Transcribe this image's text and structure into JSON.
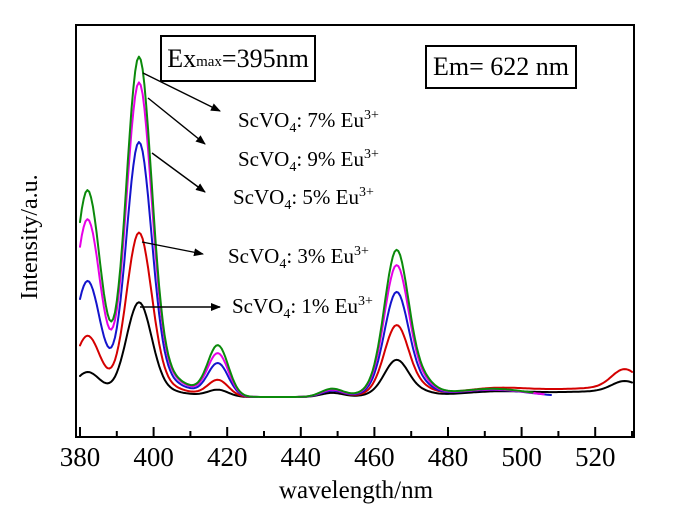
{
  "figure": {
    "background": "#ffffff",
    "description_visible_text_only": true
  },
  "annotations": {
    "ex_prefix": "Ex",
    "ex_sub": "max",
    "ex_suffix": "=395nm",
    "em_text": "Em= 622 nm"
  },
  "curve_labels": [
    {
      "compound": "ScVO",
      "compound_sub": "4",
      "mid": ": 7% Eu",
      "sup": "3+",
      "series_id": "7pct"
    },
    {
      "compound": "ScVO",
      "compound_sub": "4",
      "mid": ": 9% Eu",
      "sup": "3+",
      "series_id": "9pct"
    },
    {
      "compound": "ScVO",
      "compound_sub": "4",
      "mid": ": 5% Eu",
      "sup": "3+",
      "series_id": "5pct"
    },
    {
      "compound": "ScVO",
      "compound_sub": "4",
      "mid": ": 3% Eu",
      "sup": "3+",
      "series_id": "3pct"
    },
    {
      "compound": "ScVO",
      "compound_sub": "4",
      "mid": ": 1% Eu",
      "sup": "3+",
      "series_id": "1pct"
    }
  ],
  "chart_data": {
    "type": "line",
    "title": "",
    "xlabel": "wavelength/nm",
    "ylabel": "Intensity/a.u.",
    "xlim": [
      380,
      530
    ],
    "x_ticks": [
      380,
      400,
      420,
      440,
      460,
      480,
      500,
      520
    ],
    "x_minor_tick_interval": 10,
    "grid": false,
    "y_unit": "a.u.",
    "excitation_max_nm": 395,
    "emission_nm": 622,
    "peak_wavelengths_nm": [
      383,
      395,
      417,
      448,
      466,
      474,
      490,
      528
    ],
    "peak_centers_nm": [
      382,
      396,
      399,
      417.5,
      448.5,
      466,
      467,
      473.5,
      492,
      528,
      528
    ],
    "peak_sigmas_nm": [
      3.5,
      3.4,
      8.0,
      2.8,
      3.0,
      3.2,
      6.0,
      2.5,
      10.0,
      20.0,
      3.5
    ],
    "series": [
      {
        "id": "1pct",
        "name": "ScVO4: 1% Eu3+",
        "color": "#000000",
        "end_nm": 530,
        "amplitudes": [
          0.071,
          0.257,
          0.023,
          0.02,
          0.012,
          0.091,
          0.018,
          0.004,
          0.013,
          0.018,
          0.029
        ]
      },
      {
        "id": "3pct",
        "name": "ScVO4: 3% Eu3+",
        "color": "#d40000",
        "end_nm": 530,
        "amplitudes": [
          0.176,
          0.447,
          0.039,
          0.048,
          0.018,
          0.179,
          0.032,
          0.007,
          0.021,
          0.029,
          0.053
        ]
      },
      {
        "id": "5pct",
        "name": "ScVO4: 5% Eu3+",
        "color": "#1414cc",
        "end_nm": 508,
        "amplitudes": [
          0.335,
          0.694,
          0.06,
          0.096,
          0.018,
          0.262,
          0.047,
          0.009,
          0.021,
          0,
          0
        ]
      },
      {
        "id": "9pct",
        "name": "ScVO4: 9% Eu3+",
        "color": "#e600e6",
        "end_nm": 506,
        "amplitudes": [
          0.515,
          0.856,
          0.074,
          0.124,
          0.021,
          0.329,
          0.059,
          0.012,
          0.022,
          0,
          0
        ]
      },
      {
        "id": "7pct",
        "name": "ScVO4: 7% Eu3+",
        "color": "#0b8a0b",
        "end_nm": 503,
        "amplitudes": [
          0.6,
          0.926,
          0.08,
          0.147,
          0.024,
          0.368,
          0.065,
          0.015,
          0.024,
          0,
          0
        ]
      }
    ],
    "relative_main_peak_heights": {
      "7pct": 1.0,
      "9pct": 0.92,
      "5pct": 0.75,
      "3pct": 0.48,
      "1pct": 0.28
    },
    "legend_position": "inline-labels-with-arrows"
  }
}
